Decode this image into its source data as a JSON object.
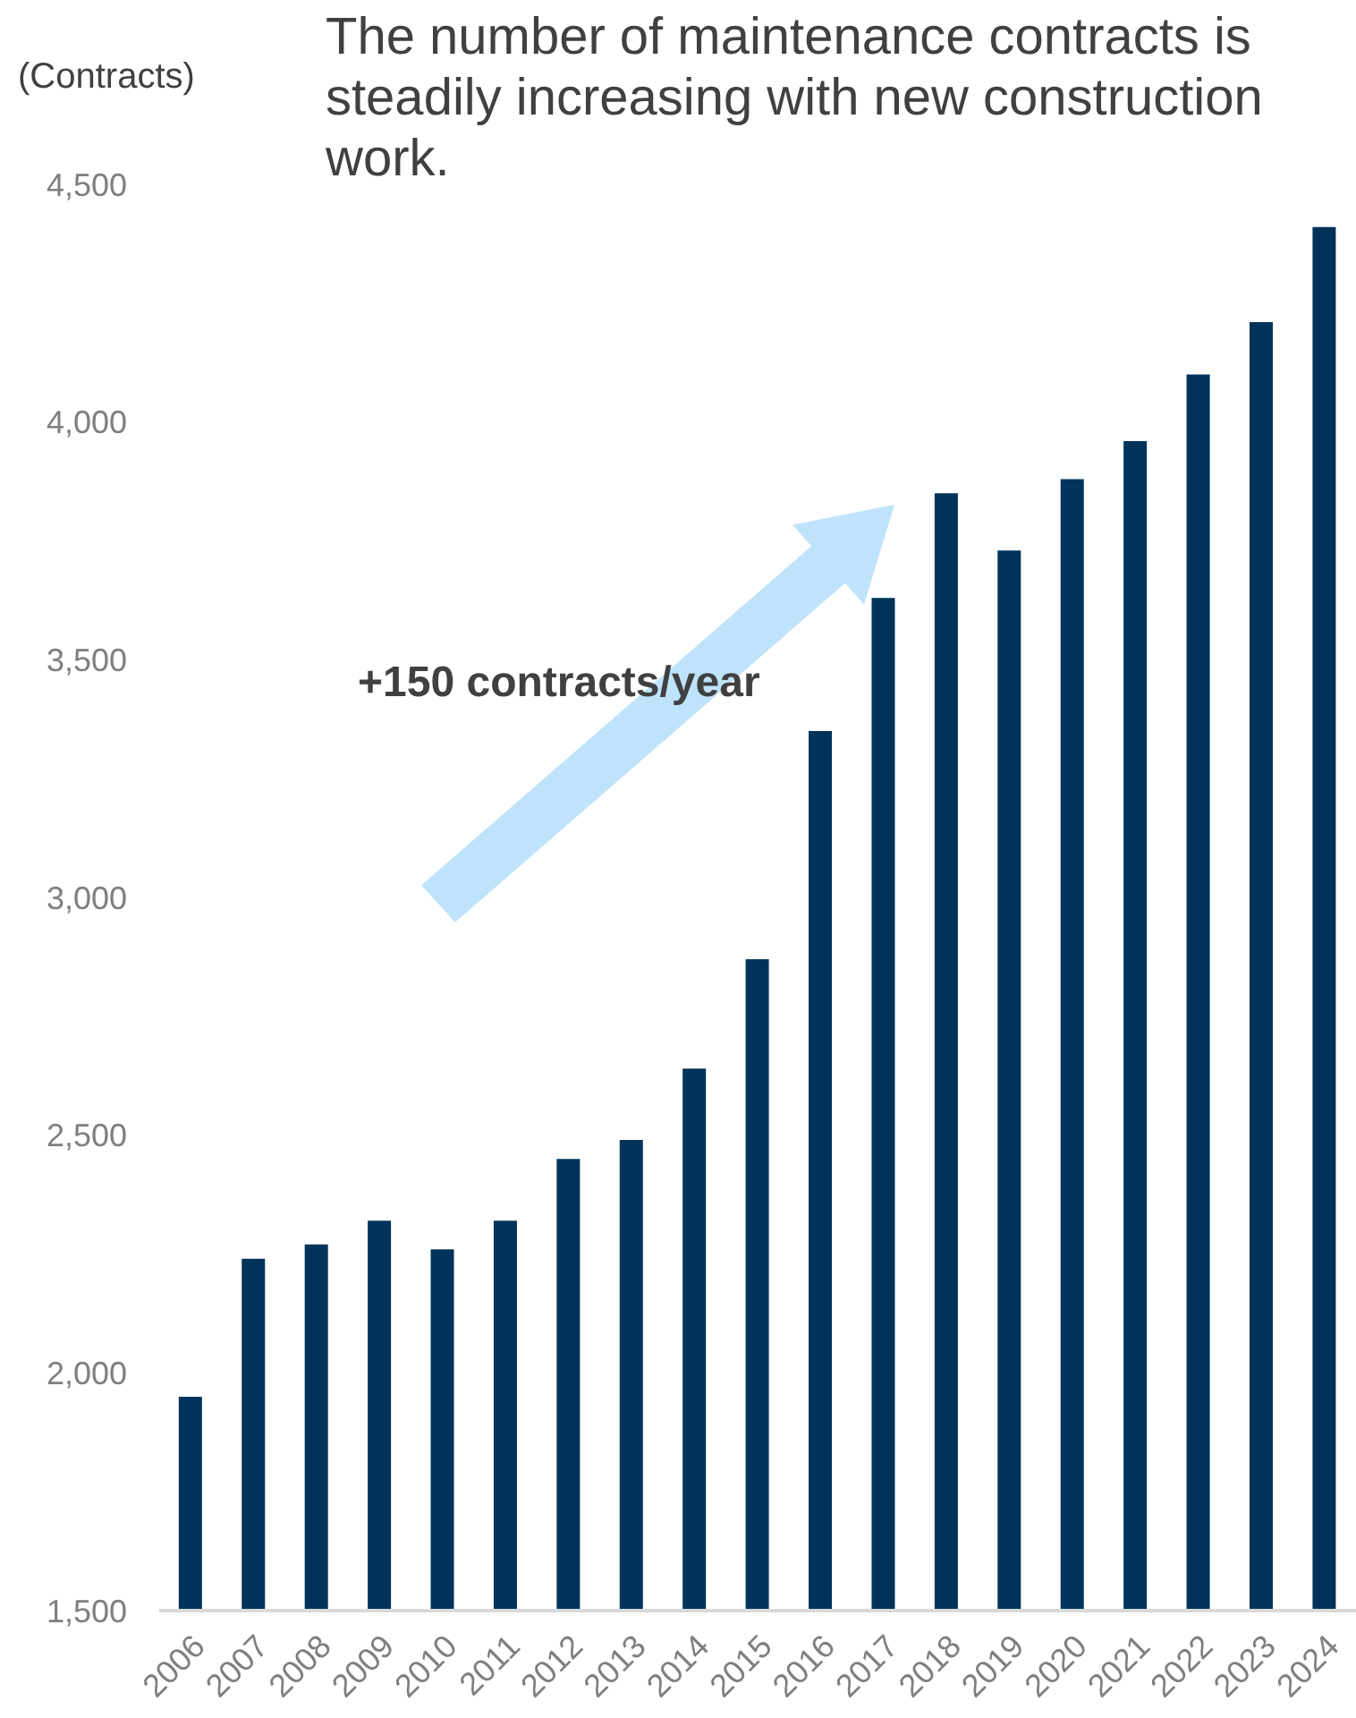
{
  "chart_data": {
    "type": "bar",
    "title": "The number of maintenance contracts is steadily increasing with new construction work.",
    "ylabel": "(Contracts)",
    "categories": [
      "2006",
      "2007",
      "2008",
      "2009",
      "2010",
      "2011",
      "2012",
      "2013",
      "2014",
      "2015",
      "2016",
      "2017",
      "2018",
      "2019",
      "2020",
      "2021",
      "2022",
      "2023",
      "2024"
    ],
    "values": [
      1950,
      2240,
      2270,
      2320,
      2260,
      2320,
      2450,
      2490,
      2640,
      2870,
      3350,
      3630,
      3850,
      3730,
      3880,
      3960,
      4100,
      4210,
      4410
    ],
    "color": "#003359",
    "ylim": [
      1500,
      4500
    ],
    "yticks": [
      {
        "value": 1500,
        "label": "1,500"
      },
      {
        "value": 2000,
        "label": "2,000"
      },
      {
        "value": 2500,
        "label": "2,500"
      },
      {
        "value": 3000,
        "label": "3,000"
      },
      {
        "value": 3500,
        "label": "3,500"
      },
      {
        "value": 4000,
        "label": "4,000"
      },
      {
        "value": 4500,
        "label": "4,500"
      }
    ],
    "annotations": [
      "+150 contracts/year"
    ]
  }
}
